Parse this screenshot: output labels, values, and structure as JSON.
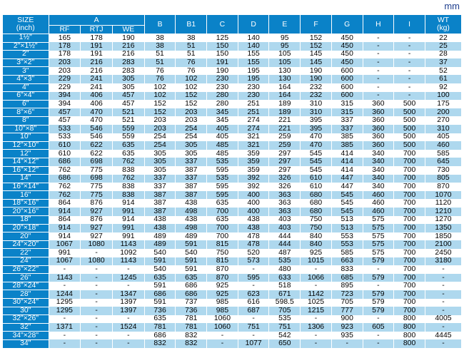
{
  "unit_label": "mm",
  "headers": {
    "size": "SIZE",
    "size_sub": "(inch)",
    "a": "A",
    "rf": "RF",
    "rtj": "RTJ",
    "we": "WE",
    "b": "B",
    "b1": "B1",
    "c": "C",
    "d": "D",
    "e": "E",
    "f": "F",
    "g": "G",
    "h": "H",
    "i": "I",
    "wt": "WT",
    "wt_sub": "(kg)"
  },
  "rows": [
    [
      "1½\"",
      "165",
      "178",
      "190",
      "38",
      "38",
      "125",
      "140",
      "95",
      "152",
      "450",
      "-",
      "-",
      "22"
    ],
    [
      "2\"×1½\"",
      "178",
      "191",
      "216",
      "38",
      "51",
      "150",
      "140",
      "95",
      "152",
      "450",
      "-",
      "-",
      "25"
    ],
    [
      "2\"",
      "178",
      "191",
      "216",
      "51",
      "51",
      "150",
      "155",
      "105",
      "145",
      "450",
      "-",
      "-",
      "28"
    ],
    [
      "3\"×2\"",
      "203",
      "216",
      "283",
      "51",
      "76",
      "191",
      "155",
      "105",
      "145",
      "450",
      "-",
      "-",
      "37"
    ],
    [
      "3\"",
      "203",
      "216",
      "283",
      "76",
      "76",
      "190",
      "195",
      "130",
      "190",
      "600",
      "-",
      "-",
      "52"
    ],
    [
      "4\"×3\"",
      "229",
      "241",
      "305",
      "76",
      "102",
      "230",
      "195",
      "130",
      "190",
      "600",
      "-",
      "-",
      "61"
    ],
    [
      "4\"",
      "229",
      "241",
      "305",
      "102",
      "102",
      "230",
      "230",
      "164",
      "232",
      "600",
      "-",
      "-",
      "92"
    ],
    [
      "6\"×4\"",
      "394",
      "406",
      "457",
      "102",
      "152",
      "280",
      "230",
      "164",
      "232",
      "600",
      "-",
      "-",
      "100"
    ],
    [
      "6\"",
      "394",
      "406",
      "457",
      "152",
      "152",
      "280",
      "251",
      "189",
      "310",
      "315",
      "360",
      "500",
      "175"
    ],
    [
      "8\"×6\"",
      "457",
      "470",
      "521",
      "152",
      "203",
      "345",
      "251",
      "189",
      "310",
      "315",
      "360",
      "500",
      "200"
    ],
    [
      "8\"",
      "457",
      "470",
      "521",
      "203",
      "203",
      "345",
      "274",
      "221",
      "395",
      "337",
      "360",
      "500",
      "270"
    ],
    [
      "10\"×8\"",
      "533",
      "546",
      "559",
      "203",
      "254",
      "405",
      "274",
      "221",
      "395",
      "337",
      "360",
      "500",
      "310"
    ],
    [
      "10\"",
      "533",
      "546",
      "559",
      "254",
      "254",
      "405",
      "321",
      "259",
      "470",
      "385",
      "360",
      "500",
      "405"
    ],
    [
      "12\"×10\"",
      "610",
      "622",
      "635",
      "254",
      "305",
      "485",
      "321",
      "259",
      "470",
      "385",
      "360",
      "500",
      "460"
    ],
    [
      "12\"",
      "610",
      "622",
      "635",
      "305",
      "305",
      "485",
      "359",
      "297",
      "545",
      "414",
      "340",
      "700",
      "585"
    ],
    [
      "14\"×12\"",
      "686",
      "698",
      "762",
      "305",
      "337",
      "535",
      "359",
      "297",
      "545",
      "414",
      "340",
      "700",
      "645"
    ],
    [
      "16\"×12\"",
      "762",
      "775",
      "838",
      "305",
      "387",
      "595",
      "359",
      "297",
      "545",
      "414",
      "340",
      "700",
      "730"
    ],
    [
      "14\"",
      "686",
      "698",
      "762",
      "337",
      "337",
      "535",
      "392",
      "326",
      "610",
      "447",
      "340",
      "700",
      "805"
    ],
    [
      "16\"×14\"",
      "762",
      "775",
      "838",
      "337",
      "387",
      "595",
      "392",
      "326",
      "610",
      "447",
      "340",
      "700",
      "870"
    ],
    [
      "16\"",
      "762",
      "775",
      "838",
      "387",
      "387",
      "595",
      "400",
      "363",
      "680",
      "545",
      "460",
      "700",
      "1070"
    ],
    [
      "18\"×16\"",
      "864",
      "876",
      "914",
      "387",
      "438",
      "635",
      "400",
      "363",
      "680",
      "545",
      "460",
      "700",
      "1120"
    ],
    [
      "20\"×16\"",
      "914",
      "927",
      "991",
      "387",
      "498",
      "700",
      "400",
      "363",
      "680",
      "545",
      "460",
      "700",
      "1210"
    ],
    [
      "18\"",
      "864",
      "876",
      "914",
      "438",
      "438",
      "635",
      "438",
      "403",
      "750",
      "513",
      "575",
      "700",
      "1270"
    ],
    [
      "20\"×18\"",
      "914",
      "927",
      "991",
      "438",
      "498",
      "700",
      "438",
      "403",
      "750",
      "513",
      "575",
      "700",
      "1350"
    ],
    [
      "20\"",
      "914",
      "927",
      "991",
      "489",
      "489",
      "700",
      "478",
      "444",
      "840",
      "553",
      "575",
      "700",
      "1850"
    ],
    [
      "24\"×20\"",
      "1067",
      "1080",
      "1143",
      "489",
      "591",
      "815",
      "478",
      "444",
      "840",
      "553",
      "575",
      "700",
      "2100"
    ],
    [
      "22\"",
      "991",
      "-",
      "1092",
      "540",
      "540",
      "750",
      "520",
      "487",
      "925",
      "585",
      "575",
      "700",
      "2450"
    ],
    [
      "24\"",
      "1067",
      "1080",
      "1143",
      "591",
      "591",
      "815",
      "573",
      "535",
      "1015",
      "663",
      "579",
      "700",
      "3180"
    ],
    [
      "26\"×22\"",
      "-",
      "-",
      "-",
      "540",
      "591",
      "870",
      "-",
      "480",
      "-",
      "833",
      "-",
      "700",
      "-"
    ],
    [
      "26\"",
      "1143",
      "-",
      "1245",
      "635",
      "635",
      "870",
      "595",
      "633",
      "1066",
      "685",
      "579",
      "700",
      "-"
    ],
    [
      "28\"×24\"",
      "-",
      "-",
      "-",
      "591",
      "686",
      "925",
      "-",
      "518",
      "-",
      "895",
      "-",
      "700",
      "-"
    ],
    [
      "28\"",
      "1244",
      "-",
      "1347",
      "686",
      "686",
      "925",
      "623",
      "671",
      "1142",
      "723",
      "579",
      "700",
      "-"
    ],
    [
      "30\"×24\"",
      "1295",
      "-",
      "1397",
      "591",
      "737",
      "985",
      "616",
      "598.5",
      "1025",
      "705",
      "579",
      "700",
      "-"
    ],
    [
      "30\"",
      "1295",
      "-",
      "1397",
      "736",
      "736",
      "985",
      "687",
      "705",
      "1215",
      "777",
      "579",
      "700",
      "-"
    ],
    [
      "32\"×26\"",
      "-",
      "-",
      "-",
      "635",
      "781",
      "1060",
      "-",
      "535",
      "-",
      "900",
      "-",
      "800",
      "4005"
    ],
    [
      "32\"",
      "1371",
      "-",
      "1524",
      "781",
      "781",
      "1060",
      "751",
      "751",
      "1306",
      "923",
      "605",
      "800",
      "-"
    ],
    [
      "34\"×28\"",
      "-",
      "-",
      "-",
      "686",
      "832",
      "-",
      "-",
      "542",
      "-",
      "935",
      "-",
      "800",
      "4445"
    ],
    [
      "34\"",
      "-",
      "-",
      "-",
      "832",
      "832",
      "-",
      "1077",
      "650",
      "-",
      "-",
      "-",
      "800",
      "-"
    ]
  ]
}
